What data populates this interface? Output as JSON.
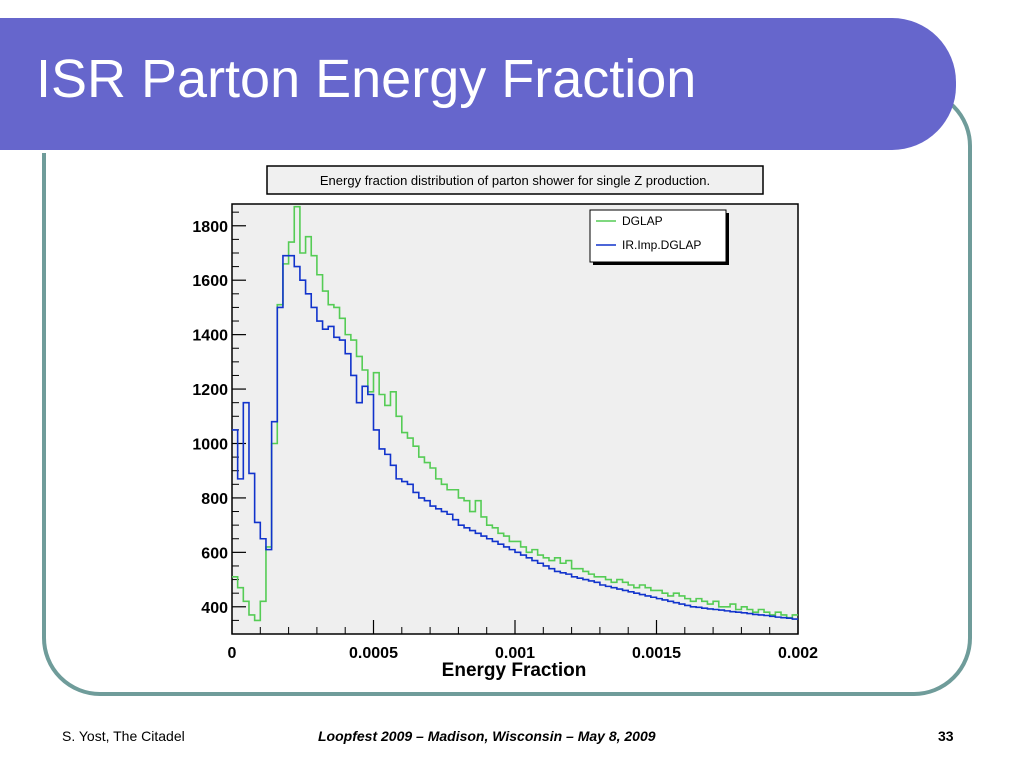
{
  "slide": {
    "title": "ISR Parton Energy Fraction",
    "footer_left": "S. Yost, The Citadel",
    "footer_center": "Loopfest 2009 – Madison, Wisconsin – May 8, 2009",
    "page_number": "33"
  },
  "colors": {
    "title_bar": "#6666cc",
    "frame": "#6f9c9a",
    "plot_background": "#efefef"
  },
  "chart_data": {
    "type": "line",
    "style": "step histogram",
    "title": "Energy fraction distribution of parton shower for single Z production.",
    "xlabel": "Energy Fraction",
    "ylabel": "",
    "xlim": [
      0,
      0.002
    ],
    "ylim": [
      300,
      1880
    ],
    "x_ticks": [
      0,
      0.0005,
      0.001,
      0.0015,
      0.002
    ],
    "x_tick_labels": [
      "0",
      "0.0005",
      "0.001",
      "0.0015",
      "0.002"
    ],
    "y_ticks": [
      400,
      600,
      800,
      1000,
      1200,
      1400,
      1600,
      1800
    ],
    "y_tick_labels": [
      "400",
      "600",
      "800",
      "1000",
      "1200",
      "1400",
      "1600",
      "1800"
    ],
    "grid": false,
    "legend_position": "top-right",
    "bin_width": 2e-05,
    "x": [
      0,
      2e-05,
      4e-05,
      6e-05,
      8e-05,
      0.0001,
      0.00012,
      0.00014,
      0.00016,
      0.00018,
      0.0002,
      0.00022,
      0.00024,
      0.00026,
      0.00028,
      0.0003,
      0.00032,
      0.00034,
      0.00036,
      0.00038,
      0.0004,
      0.00042,
      0.00044,
      0.00046,
      0.00048,
      0.0005,
      0.00052,
      0.00054,
      0.00056,
      0.00058,
      0.0006,
      0.00062,
      0.00064,
      0.00066,
      0.00068,
      0.0007,
      0.00072,
      0.00074,
      0.00076,
      0.00078,
      0.0008,
      0.00082,
      0.00084,
      0.00086,
      0.00088,
      0.0009,
      0.00092,
      0.00094,
      0.00096,
      0.00098,
      0.001,
      0.00102,
      0.00104,
      0.00106,
      0.00108,
      0.0011,
      0.00112,
      0.00114,
      0.00116,
      0.00118,
      0.0012,
      0.00122,
      0.00124,
      0.00126,
      0.00128,
      0.0013,
      0.00132,
      0.00134,
      0.00136,
      0.00138,
      0.0014,
      0.00142,
      0.00144,
      0.00146,
      0.00148,
      0.0015,
      0.00152,
      0.00154,
      0.00156,
      0.00158,
      0.0016,
      0.00162,
      0.00164,
      0.00166,
      0.00168,
      0.0017,
      0.00172,
      0.00174,
      0.00176,
      0.00178,
      0.0018,
      0.00182,
      0.00184,
      0.00186,
      0.00188,
      0.0019,
      0.00192,
      0.00194,
      0.00196,
      0.00198
    ],
    "series": [
      {
        "name": "DGLAP",
        "color": "#55cc55",
        "values": [
          510,
          470,
          420,
          370,
          350,
          420,
          620,
          1000,
          1510,
          1660,
          1740,
          1870,
          1700,
          1760,
          1690,
          1620,
          1560,
          1510,
          1500,
          1460,
          1400,
          1380,
          1320,
          1270,
          1190,
          1260,
          1180,
          1140,
          1190,
          1100,
          1040,
          1020,
          990,
          950,
          930,
          910,
          870,
          850,
          830,
          830,
          800,
          790,
          750,
          790,
          730,
          700,
          690,
          670,
          660,
          640,
          640,
          620,
          600,
          610,
          590,
          580,
          570,
          580,
          560,
          570,
          540,
          540,
          530,
          520,
          510,
          510,
          500,
          490,
          500,
          490,
          480,
          470,
          480,
          470,
          460,
          460,
          450,
          440,
          450,
          440,
          430,
          420,
          430,
          420,
          410,
          420,
          400,
          400,
          410,
          390,
          400,
          390,
          380,
          390,
          380,
          370,
          380,
          370,
          360,
          370
        ]
      },
      {
        "name": "IR.Imp.DGLAP",
        "color": "#1133cc",
        "values": [
          1050,
          870,
          1150,
          890,
          710,
          650,
          610,
          1080,
          1500,
          1690,
          1690,
          1650,
          1600,
          1550,
          1500,
          1450,
          1420,
          1430,
          1390,
          1380,
          1330,
          1250,
          1150,
          1210,
          1180,
          1050,
          980,
          960,
          920,
          870,
          860,
          850,
          820,
          800,
          790,
          770,
          760,
          750,
          740,
          720,
          700,
          690,
          680,
          670,
          660,
          650,
          640,
          630,
          620,
          610,
          600,
          590,
          580,
          570,
          560,
          550,
          540,
          530,
          525,
          520,
          510,
          505,
          500,
          495,
          490,
          480,
          475,
          470,
          465,
          460,
          455,
          450,
          445,
          440,
          435,
          430,
          425,
          420,
          415,
          410,
          405,
          400,
          398,
          395,
          392,
          390,
          388,
          385,
          382,
          380,
          378,
          375,
          372,
          370,
          368,
          365,
          362,
          360,
          358,
          355
        ]
      }
    ]
  }
}
